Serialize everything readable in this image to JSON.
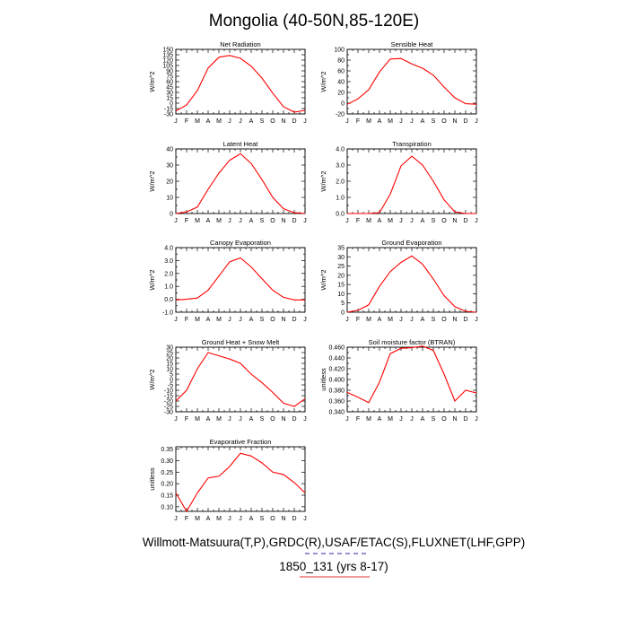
{
  "figure": {
    "title": "Mongolia (40-50N,85-120E)",
    "footer_line1": "Willmott-Matsuura(T,P),GRDC(R),USAF/ETAC(S),FLUXNET(LHF,GPP)",
    "footer_line2": "1850_131 (yrs 8-17)",
    "line_color": "#ff0000",
    "dash_color_1": "#2a2aa0",
    "dash_color_2": "#e03030"
  },
  "chart_data": [
    {
      "type": "line",
      "title": "Net Radiation",
      "ylabel": "W/m^2",
      "categories": [
        "J",
        "F",
        "M",
        "A",
        "M",
        "J",
        "J",
        "A",
        "S",
        "O",
        "N",
        "D",
        "J"
      ],
      "ylim": [
        -30,
        150
      ],
      "yticks": [
        -30,
        -15,
        0,
        15,
        30,
        45,
        60,
        75,
        90,
        105,
        120,
        135,
        150
      ],
      "ytick_labels": [
        "-30",
        "-15",
        "0",
        "15",
        "30",
        "45",
        "60",
        "75",
        "90",
        "105",
        "120",
        "135",
        "150"
      ],
      "values": [
        -22,
        -5,
        35,
        98,
        128,
        133,
        125,
        103,
        70,
        28,
        -10,
        -25,
        -20
      ]
    },
    {
      "type": "line",
      "title": "Sensible Heat",
      "ylabel": "W/m^2",
      "categories": [
        "J",
        "F",
        "M",
        "A",
        "M",
        "J",
        "J",
        "A",
        "S",
        "O",
        "N",
        "D",
        "J"
      ],
      "ylim": [
        -20,
        100
      ],
      "yticks": [
        -20,
        -10,
        0,
        10,
        20,
        30,
        40,
        50,
        60,
        70,
        80,
        90,
        100
      ],
      "ytick_labels": [
        "-20",
        "",
        "0",
        "",
        "20",
        "",
        "40",
        "",
        "60",
        "",
        "80",
        "",
        "100"
      ],
      "values": [
        -2,
        8,
        25,
        58,
        82,
        83,
        73,
        65,
        52,
        30,
        10,
        -1,
        -2
      ]
    },
    {
      "type": "line",
      "title": "Latent Heat",
      "ylabel": "W/m^2",
      "categories": [
        "J",
        "F",
        "M",
        "A",
        "M",
        "J",
        "J",
        "A",
        "S",
        "O",
        "N",
        "D",
        "J"
      ],
      "ylim": [
        0,
        40
      ],
      "yticks": [
        0,
        5,
        10,
        15,
        20,
        25,
        30,
        35,
        40
      ],
      "ytick_labels": [
        "0",
        "",
        "10",
        "",
        "20",
        "",
        "30",
        "",
        "40"
      ],
      "values": [
        0,
        1,
        4,
        15,
        25,
        33,
        37,
        31,
        21,
        10,
        3,
        0.5,
        0
      ]
    },
    {
      "type": "line",
      "title": "Transpiration",
      "ylabel": "W/m^2",
      "categories": [
        "J",
        "F",
        "M",
        "A",
        "M",
        "J",
        "J",
        "A",
        "S",
        "O",
        "N",
        "D",
        "J"
      ],
      "ylim": [
        0,
        4
      ],
      "yticks": [
        0,
        0.5,
        1,
        1.5,
        2,
        2.5,
        3,
        3.5,
        4
      ],
      "ytick_labels": [
        "0.0",
        "",
        "1.0",
        "",
        "2.0",
        "",
        "3.0",
        "",
        "4.0"
      ],
      "values": [
        0,
        0,
        0,
        0.05,
        1.2,
        2.95,
        3.55,
        3.0,
        2.0,
        0.85,
        0.1,
        0,
        0
      ]
    },
    {
      "type": "line",
      "title": "Canopy Evaporation",
      "ylabel": "W/m^2",
      "categories": [
        "J",
        "F",
        "M",
        "A",
        "M",
        "J",
        "J",
        "A",
        "S",
        "O",
        "N",
        "D",
        "J"
      ],
      "ylim": [
        -1,
        4
      ],
      "yticks": [
        -1,
        -0.5,
        0,
        0.5,
        1,
        1.5,
        2,
        2.5,
        3,
        3.5,
        4
      ],
      "ytick_labels": [
        "-1.0",
        "",
        "0.0",
        "",
        "1.0",
        "",
        "2.0",
        "",
        "3.0",
        "",
        "4.0"
      ],
      "values": [
        -0.05,
        0,
        0.1,
        0.7,
        1.8,
        2.9,
        3.2,
        2.5,
        1.6,
        0.7,
        0.15,
        -0.05,
        -0.05
      ]
    },
    {
      "type": "line",
      "title": "Ground Evaporation",
      "ylabel": "W/m^2",
      "categories": [
        "J",
        "F",
        "M",
        "A",
        "M",
        "J",
        "J",
        "A",
        "S",
        "O",
        "N",
        "D",
        "J"
      ],
      "ylim": [
        0,
        35
      ],
      "yticks": [
        0,
        5,
        10,
        15,
        20,
        25,
        30,
        35
      ],
      "ytick_labels": [
        "0",
        "5",
        "10",
        "15",
        "20",
        "25",
        "30",
        "35"
      ],
      "values": [
        0,
        1,
        4,
        14,
        22,
        27,
        30.5,
        26,
        18,
        9,
        3,
        0.5,
        0
      ]
    },
    {
      "type": "line",
      "title": "Ground Heat + Snow Melt",
      "ylabel": "W/m^2",
      "categories": [
        "J",
        "F",
        "M",
        "A",
        "M",
        "J",
        "J",
        "A",
        "S",
        "O",
        "N",
        "D",
        "J"
      ],
      "ylim": [
        -30,
        30
      ],
      "yticks": [
        -30,
        -25,
        -20,
        -15,
        -10,
        -5,
        0,
        5,
        10,
        15,
        20,
        25,
        30
      ],
      "ytick_labels": [
        "-30",
        "-25",
        "-20",
        "-15",
        "-10",
        "-5",
        "0",
        "5",
        "10",
        "15",
        "20",
        "25",
        "30"
      ],
      "values": [
        -20,
        -10,
        10,
        25,
        22,
        19,
        15,
        5,
        -3,
        -12,
        -22,
        -25,
        -18
      ]
    },
    {
      "type": "line",
      "title": "Soil moisture factor (BTRAN)",
      "ylabel": "unitless",
      "categories": [
        "J",
        "F",
        "M",
        "A",
        "M",
        "J",
        "J",
        "A",
        "S",
        "O",
        "N",
        "D",
        "J"
      ],
      "ylim": [
        0.34,
        0.46
      ],
      "yticks": [
        0.34,
        0.35,
        0.36,
        0.37,
        0.38,
        0.39,
        0.4,
        0.41,
        0.42,
        0.43,
        0.44,
        0.45,
        0.46
      ],
      "ytick_labels": [
        "0.340",
        "",
        "0.360",
        "",
        "0.380",
        "",
        "0.400",
        "",
        "0.420",
        "",
        "0.440",
        "",
        "0.460"
      ],
      "values": [
        0.376,
        0.367,
        0.357,
        0.395,
        0.448,
        0.458,
        0.459,
        0.462,
        0.454,
        0.41,
        0.36,
        0.38,
        0.375
      ]
    },
    {
      "type": "line",
      "title": "Evaporative Fraction",
      "ylabel": "unitless",
      "categories": [
        "J",
        "F",
        "M",
        "A",
        "M",
        "J",
        "J",
        "A",
        "S",
        "O",
        "N",
        "D",
        "J"
      ],
      "ylim": [
        0.08,
        0.36
      ],
      "yticks": [
        0.1,
        0.15,
        0.2,
        0.25,
        0.3,
        0.35
      ],
      "ytick_labels": [
        "0.10",
        "0.15",
        "0.20",
        "0.25",
        "0.30",
        "0.35"
      ],
      "values": [
        0.16,
        0.08,
        0.16,
        0.225,
        0.232,
        0.275,
        0.332,
        0.32,
        0.29,
        0.25,
        0.24,
        0.205,
        0.16
      ]
    }
  ]
}
